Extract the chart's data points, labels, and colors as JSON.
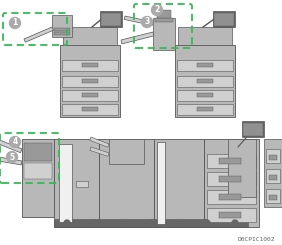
{
  "bg_color": "#ffffff",
  "caption": "D0CPIC1002",
  "green": "#33bb55",
  "gray_body": "#b8b8b8",
  "gray_dark": "#888888",
  "gray_darker": "#666666",
  "gray_medium": "#999999",
  "gray_light": "#d0d0d0",
  "gray_outline": "#555555",
  "gray_label": "#aaaaaa",
  "screen_color": "#909090",
  "white": "#f0f0f0",
  "dark_brown": "#555544"
}
